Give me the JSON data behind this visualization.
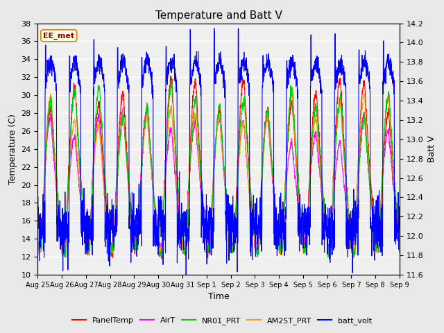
{
  "title": "Temperature and Batt V",
  "ylabel_left": "Temperature (C)",
  "ylabel_right": "Batt V",
  "xlabel": "Time",
  "annotation": "EE_met",
  "ylim_left": [
    10,
    38
  ],
  "ylim_right": [
    11.6,
    14.2
  ],
  "xtick_labels": [
    "Aug 25",
    "Aug 26",
    "Aug 27",
    "Aug 28",
    "Aug 29",
    "Aug 30",
    "Aug 31",
    "Sep 1",
    "Sep 2",
    "Sep 3",
    "Sep 4",
    "Sep 5",
    "Sep 6",
    "Sep 7",
    "Sep 8",
    "Sep 9"
  ],
  "series_colors": {
    "PanelTemp": "#ff0000",
    "AirT": "#ff00ff",
    "NR01_PRT": "#00cc00",
    "AM25T_PRT": "#ff9900",
    "batt_volt": "#0000ff"
  },
  "legend_entries": [
    "PanelTemp",
    "AirT",
    "NR01_PRT",
    "AM25T_PRT",
    "batt_volt"
  ],
  "bg_color": "#e8e8e8",
  "plot_bg_color": "#f0f0f0",
  "n_days": 15,
  "pts_per_day": 144,
  "temp_min": 12.5,
  "temp_max": 31.0,
  "batt_day": 13.8,
  "batt_night": 12.0,
  "batt_spike_max": 14.2
}
